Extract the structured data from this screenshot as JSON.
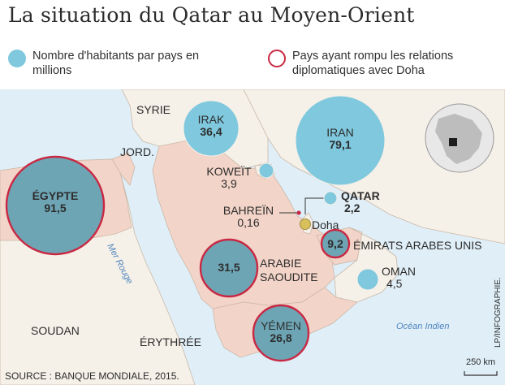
{
  "title": "La situation du Qatar au Moyen-Orient",
  "legend": {
    "population_label": "Nombre d'habitants par pays en millions",
    "rupture_label": "Pays ayant rompu les relations diplomatiques avec Doha"
  },
  "colors": {
    "population_circle": "#7fc8de",
    "rupture_ring": "#c92842",
    "sea": "#dfeef7",
    "land_rupture": "#f3d4c8",
    "land_other": "#f5f0e8"
  },
  "countries": {
    "egypte": {
      "name": "ÉGYPTE",
      "value": "91,5",
      "rupture": true
    },
    "irak": {
      "name": "IRAK",
      "value": "36,4",
      "rupture": false
    },
    "iran": {
      "name": "IRAN",
      "value": "79,1",
      "rupture": false
    },
    "koweit": {
      "name": "KOWEÏT",
      "value": "3,9",
      "rupture": false
    },
    "qatar": {
      "name": "QATAR",
      "value": "2,2",
      "rupture": false
    },
    "bahrein": {
      "name": "BAHREÏN",
      "value": "0,16",
      "rupture": true
    },
    "emirats": {
      "name": "ÉMIRATS ARABES UNIS",
      "value": "9,2",
      "rupture": true
    },
    "arabie": {
      "name": "ARABIE SAOUDITE",
      "value": "31,5",
      "rupture": true
    },
    "oman": {
      "name": "OMAN",
      "value": "4,5",
      "rupture": false
    },
    "yemen": {
      "name": "YÉMEN",
      "value": "26,8",
      "rupture": true
    }
  },
  "places": {
    "syrie": "SYRIE",
    "jordanie": "JORD.",
    "soudan": "SOUDAN",
    "erythree": "ÉRYTHRÉE",
    "doha": "Doha"
  },
  "seas": {
    "mer_rouge": "Mer Rouge",
    "ocean_indien": "Océan Indien"
  },
  "scale": "250 km",
  "source": "SOURCE : BANQUE MONDIALE, 2015.",
  "credit": "LP/INFOGRAPHIE."
}
